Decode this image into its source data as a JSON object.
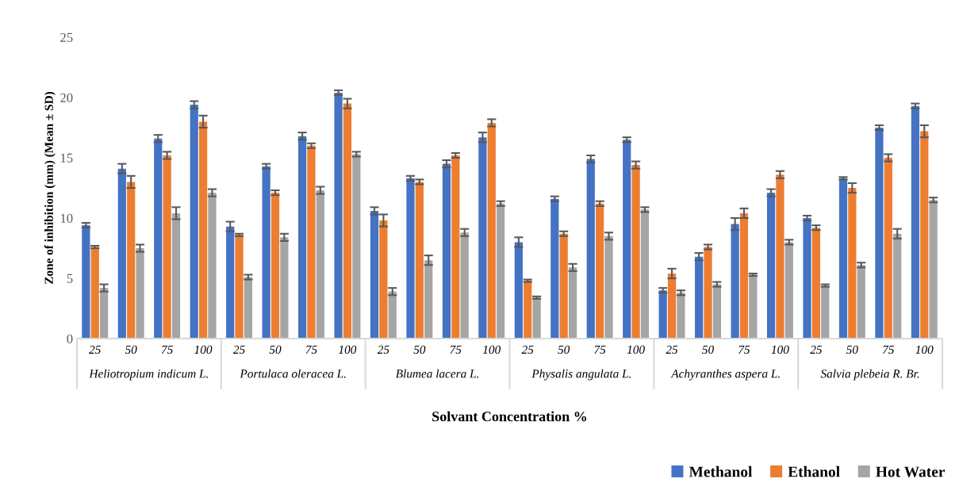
{
  "chart_data": {
    "type": "bar",
    "ylabel": "Zone of inhibition (mm) (Mean ± SD)",
    "xlabel": "Solvant Concentration %",
    "categories": [
      "25",
      "50",
      "75",
      "100",
      "25",
      "50",
      "75",
      "100",
      "25",
      "50",
      "75",
      "100",
      "25",
      "50",
      "75",
      "100",
      "25",
      "50",
      "75",
      "100",
      "25",
      "50",
      "75",
      "100"
    ],
    "annotations": [
      "Heliotropium indicum L.",
      "Portulaca oleracea L.",
      "Blumea lacera L.",
      "Physalis angulata L.",
      "Achyranthes aspera L.",
      "Salvia plebeia R. Br."
    ],
    "series": [
      {
        "name": "Methanol",
        "color": "#4472c4",
        "values": [
          9.4,
          14.1,
          16.6,
          19.4,
          9.3,
          14.3,
          16.8,
          20.4,
          10.6,
          13.3,
          14.5,
          16.7,
          8.0,
          11.6,
          14.9,
          16.5,
          4.0,
          6.8,
          9.5,
          12.1,
          10.0,
          13.3,
          17.5,
          19.3
        ],
        "errors": [
          0.2,
          0.4,
          0.3,
          0.3,
          0.4,
          0.2,
          0.3,
          0.2,
          0.3,
          0.2,
          0.3,
          0.4,
          0.4,
          0.2,
          0.3,
          0.2,
          0.2,
          0.3,
          0.5,
          0.3,
          0.2,
          0.1,
          0.2,
          0.2
        ]
      },
      {
        "name": "Ethanol",
        "color": "#ed7d31",
        "values": [
          7.6,
          13.0,
          15.2,
          18.0,
          8.6,
          12.1,
          16.0,
          19.5,
          9.8,
          13.0,
          15.2,
          17.9,
          4.8,
          8.7,
          11.2,
          14.4,
          5.4,
          7.6,
          10.4,
          13.6,
          9.2,
          12.5,
          15.0,
          17.2
        ],
        "errors": [
          0.1,
          0.5,
          0.3,
          0.5,
          0.1,
          0.2,
          0.2,
          0.4,
          0.5,
          0.2,
          0.2,
          0.3,
          0.1,
          0.2,
          0.2,
          0.3,
          0.4,
          0.2,
          0.4,
          0.3,
          0.2,
          0.4,
          0.3,
          0.5
        ]
      },
      {
        "name": "Hot Water",
        "color": "#a5a5a5",
        "values": [
          4.2,
          7.5,
          10.4,
          12.1,
          5.1,
          8.4,
          12.3,
          15.3,
          3.9,
          6.5,
          8.8,
          11.2,
          3.4,
          5.9,
          8.5,
          10.7,
          3.8,
          4.5,
          5.3,
          8.0,
          4.4,
          6.1,
          8.7,
          11.5
        ],
        "errors": [
          0.3,
          0.3,
          0.5,
          0.3,
          0.2,
          0.3,
          0.3,
          0.2,
          0.3,
          0.4,
          0.3,
          0.2,
          0.1,
          0.3,
          0.3,
          0.2,
          0.2,
          0.2,
          0.1,
          0.2,
          0.1,
          0.2,
          0.4,
          0.2
        ]
      }
    ],
    "ylim": [
      0,
      25
    ],
    "yticks": [
      0,
      5,
      10,
      15,
      20,
      25
    ],
    "grid": false,
    "legend": "bottom right"
  }
}
